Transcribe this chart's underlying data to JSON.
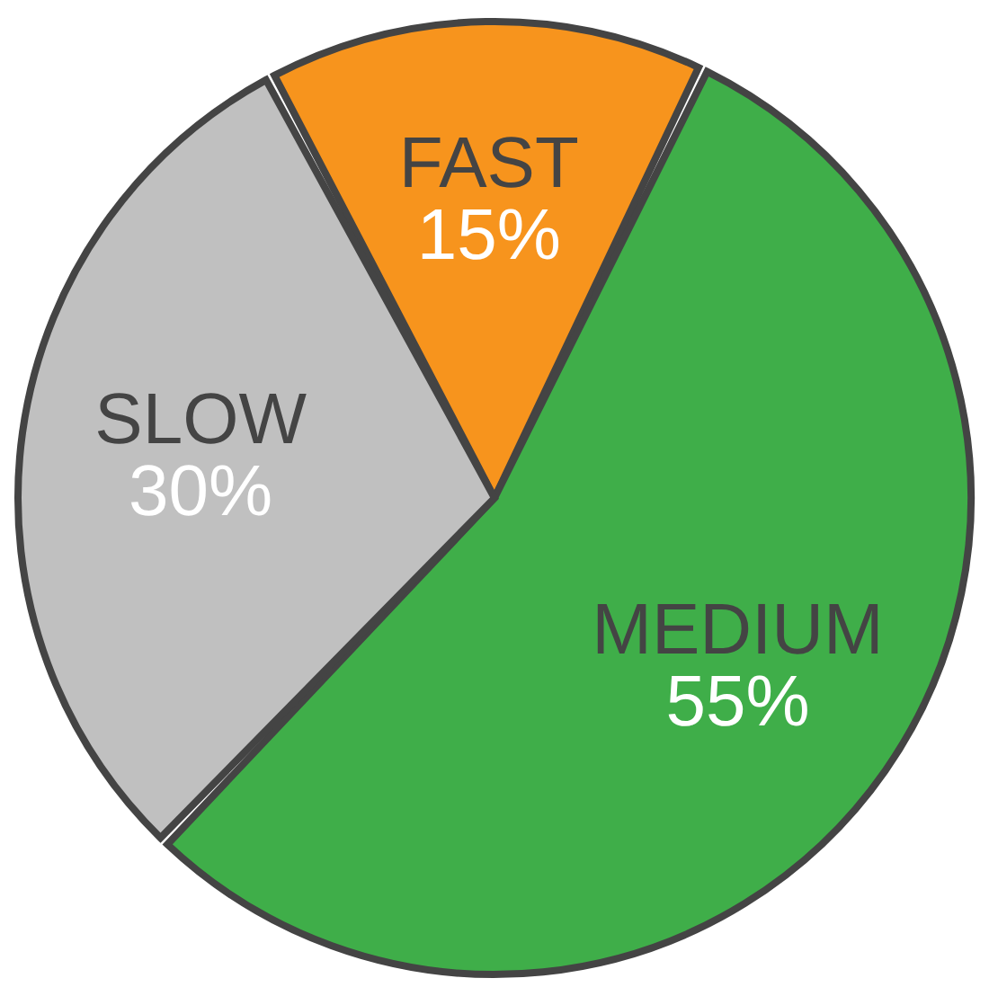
{
  "chart_data": {
    "type": "pie",
    "categories": [
      "FAST",
      "MEDIUM",
      "SLOW"
    ],
    "values": [
      15,
      55,
      30
    ],
    "colors": [
      "#f7941d",
      "#3fae49",
      "#c0c0c0"
    ],
    "value_labels": [
      "15%",
      "55%",
      "30%"
    ]
  }
}
